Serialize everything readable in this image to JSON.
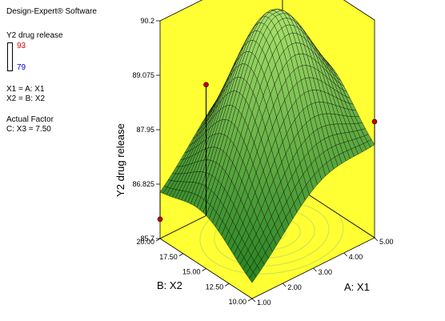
{
  "software": "Design-Expert® Software",
  "legend": {
    "response": "Y2 drug release",
    "high": "93",
    "low": "79",
    "factor_a": "X1 = A: X1",
    "factor_b": "X2 = B: X2",
    "actual_factor_title": "Actual Factor",
    "actual_factor": "C: X3 = 7.50"
  },
  "colors": {
    "wall": "#ffff33",
    "surface_high": "#a6e06a",
    "surface_low": "#1e7a1e",
    "mesh": "#000000",
    "design_point": "#c40000",
    "contour": "#c8e05a"
  },
  "chart_data": {
    "type": "surface3d",
    "title": "",
    "xlabel": "A: X1",
    "ylabel": "B: X2",
    "zlabel": "Y2 drug release",
    "xlim": [
      1,
      5
    ],
    "ylim": [
      10,
      20
    ],
    "zlim": [
      85.7,
      90.2
    ],
    "x_ticks": [
      "1.00",
      "2.00",
      "3.00",
      "4.00",
      "5.00"
    ],
    "y_ticks": [
      "10.00",
      "12.50",
      "15.00",
      "17.50",
      "20.00"
    ],
    "z_ticks": [
      "85.7",
      "86.825",
      "87.95",
      "89.075",
      "90.2"
    ],
    "surface_corners": [
      {
        "x": 1,
        "y": 20,
        "z": 86.5
      },
      {
        "x": 5,
        "y": 20,
        "z": 87.9
      },
      {
        "x": 1,
        "y": 10,
        "z": 85.9
      },
      {
        "x": 5,
        "y": 10,
        "z": 87.4
      }
    ],
    "surface_peak": {
      "x": 3.2,
      "y": 15.2,
      "z": 90.2
    },
    "design_points": [
      {
        "x": 1,
        "y": 15,
        "z": 89.5
      },
      {
        "x": 1,
        "y": 20,
        "z": 86.1
      },
      {
        "x": 5,
        "y": 10,
        "z": 88.1
      }
    ]
  }
}
